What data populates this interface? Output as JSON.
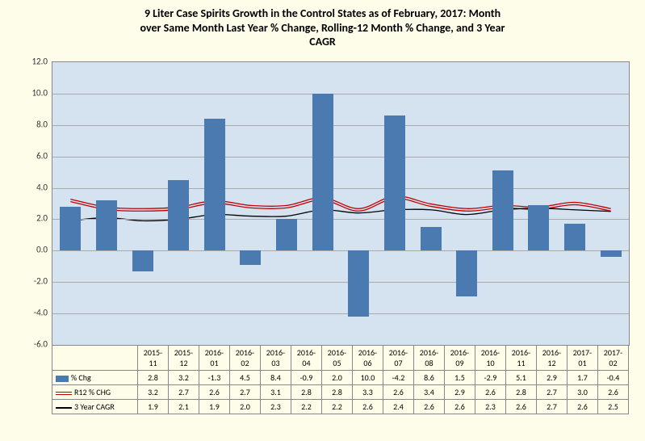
{
  "title_lines": [
    "9 Liter Case Spirits Growth in the Control States as of February, 2017:  Month",
    "over Same Month Last Year % Change, Rolling-12 Month % Change, and 3 Year",
    "CAGR"
  ],
  "chart": {
    "type": "bar+line",
    "ylim": [
      -6.0,
      12.0
    ],
    "ytick_step": 2.0,
    "yticks": [
      "-6.0",
      "-4.0",
      "-2.0",
      "0.0",
      "2.0",
      "4.0",
      "6.0",
      "8.0",
      "10.0",
      "12.0"
    ],
    "plot_bg": "#d5e3f0",
    "page_bg": "#fefdea",
    "grid_color": "#aaaaaa",
    "bar_color": "#4a7ab0",
    "line_r12_color": "#c00000",
    "line_cagr_color": "#000000",
    "categories": [
      "2015-11",
      "2015-12",
      "2016-01",
      "2016-02",
      "2016-03",
      "2016-04",
      "2016-05",
      "2016-06",
      "2016-07",
      "2016-08",
      "2016-09",
      "2016-10",
      "2016-11",
      "2016-12",
      "2017-01",
      "2017-02"
    ],
    "series": {
      "pct_chg": {
        "label": "% Chg",
        "values": [
          2.8,
          3.2,
          -1.3,
          4.5,
          8.4,
          -0.9,
          2.0,
          10.0,
          -4.2,
          8.6,
          1.5,
          -2.9,
          5.1,
          2.9,
          1.7,
          -0.4
        ]
      },
      "r12": {
        "label": "R12 % CHG",
        "values": [
          3.2,
          2.7,
          2.6,
          2.7,
          3.1,
          2.8,
          2.8,
          3.3,
          2.6,
          3.4,
          2.9,
          2.6,
          2.8,
          2.7,
          3.0,
          2.6
        ]
      },
      "cagr": {
        "label": "3 Year CAGR",
        "values": [
          1.9,
          2.1,
          1.9,
          2.0,
          2.3,
          2.2,
          2.2,
          2.6,
          2.4,
          2.6,
          2.6,
          2.3,
          2.6,
          2.7,
          2.6,
          2.5
        ]
      }
    }
  },
  "header_col_width_pct": 14
}
